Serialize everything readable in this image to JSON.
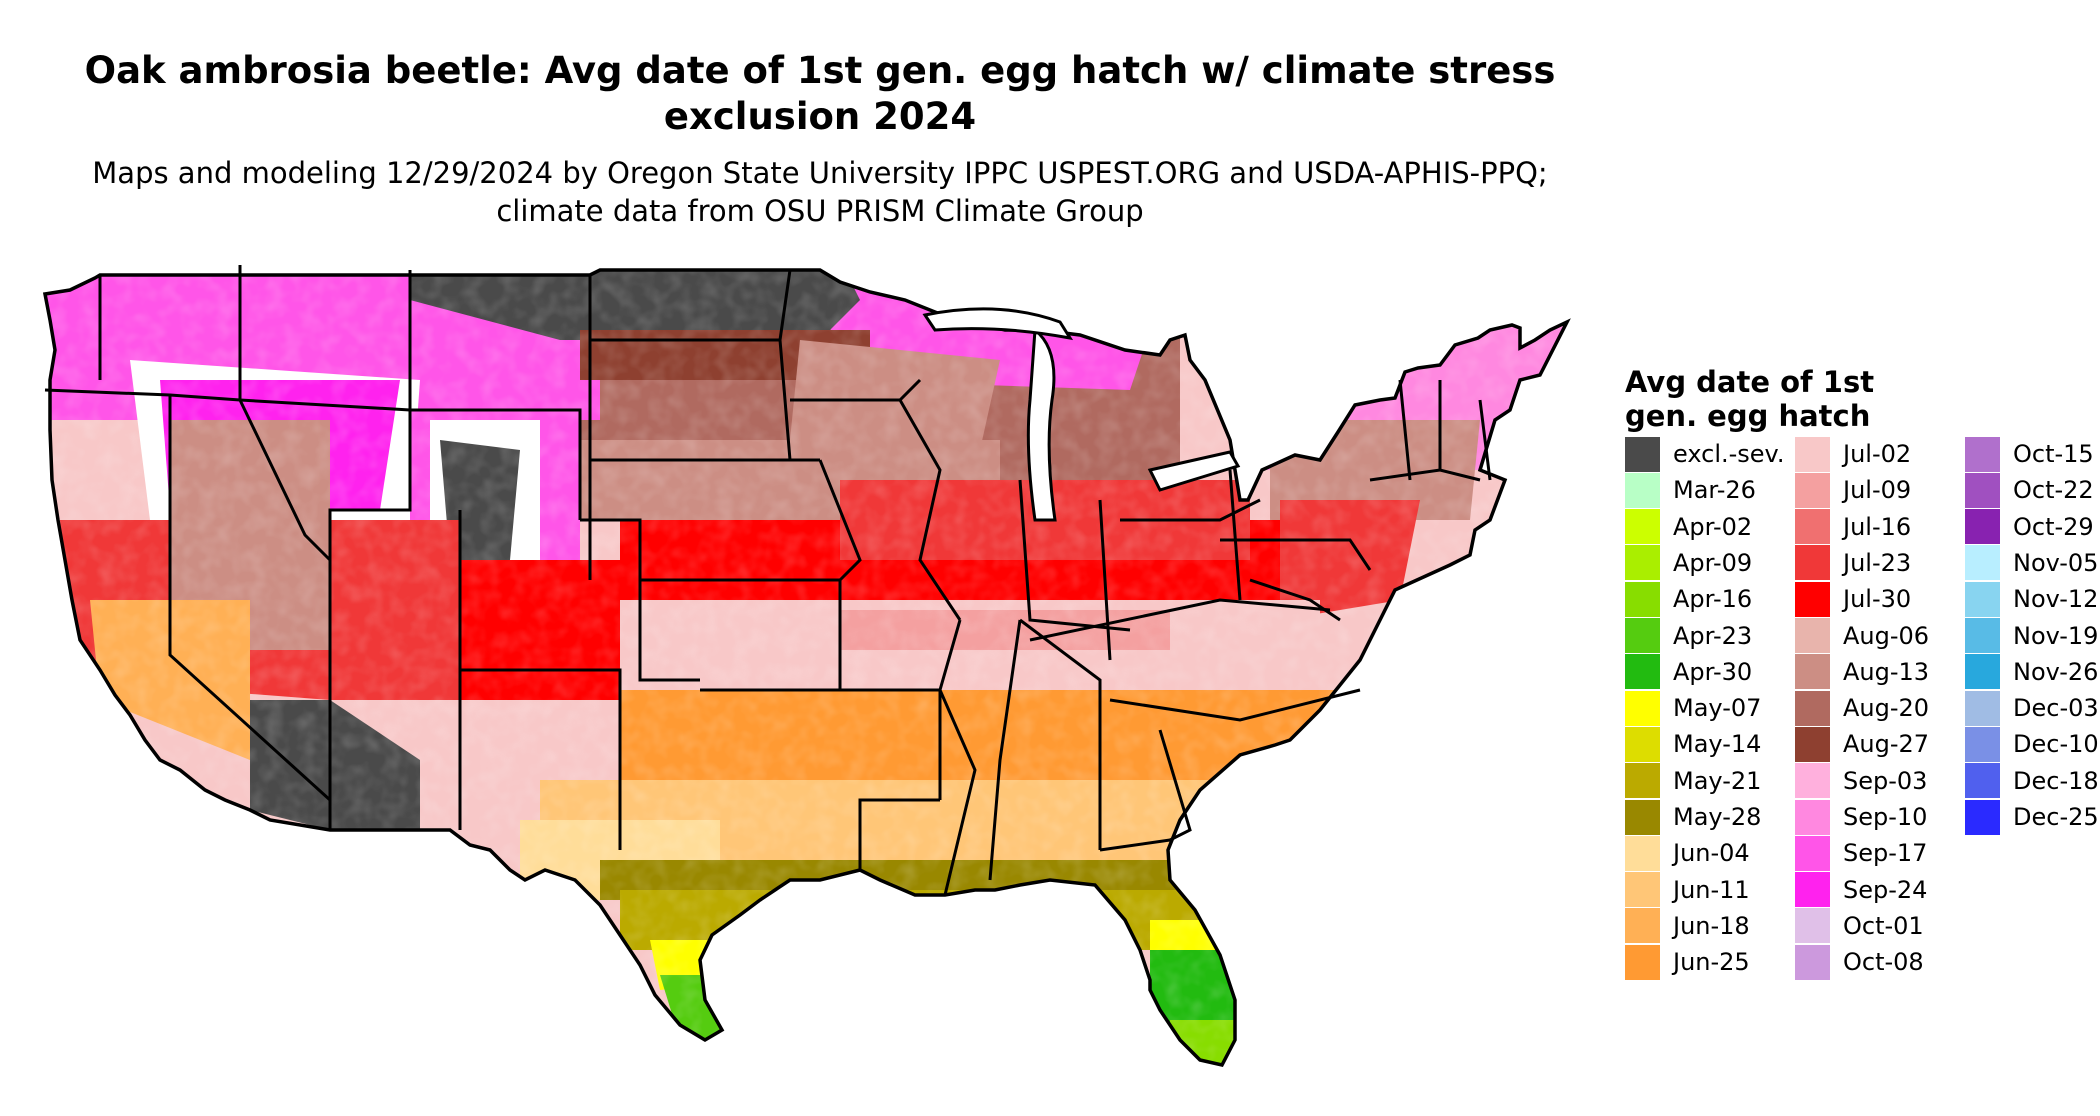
{
  "title": "Oak ambrosia beetle: Avg date of 1st gen. egg hatch w/ climate stress exclusion 2024",
  "subtitle": "Maps and modeling 12/29/2024 by Oregon State University IPPC USPEST.ORG and USDA-APHIS-PPQ; climate data from OSU PRISM Climate Group",
  "legend": {
    "title": "Avg date of 1st gen. egg hatch",
    "items": [
      {
        "label": "excl.-sev.",
        "color": "#4a4a4a"
      },
      {
        "label": "Mar-26",
        "color": "#b8ffc6"
      },
      {
        "label": "Apr-02",
        "color": "#ccff00"
      },
      {
        "label": "Apr-09",
        "color": "#aaee00"
      },
      {
        "label": "Apr-16",
        "color": "#88dd00"
      },
      {
        "label": "Apr-23",
        "color": "#55cc10"
      },
      {
        "label": "Apr-30",
        "color": "#22bb10"
      },
      {
        "label": "May-07",
        "color": "#ffff00"
      },
      {
        "label": "May-14",
        "color": "#dddd00"
      },
      {
        "label": "May-21",
        "color": "#bbaa00"
      },
      {
        "label": "May-28",
        "color": "#998800"
      },
      {
        "label": "Jun-04",
        "color": "#ffdd99"
      },
      {
        "label": "Jun-11",
        "color": "#ffc677"
      },
      {
        "label": "Jun-18",
        "color": "#ffb055"
      },
      {
        "label": "Jun-25",
        "color": "#ff9a33"
      },
      {
        "label": "Jul-02",
        "color": "#f8c8c8"
      },
      {
        "label": "Jul-09",
        "color": "#f4a0a0"
      },
      {
        "label": "Jul-16",
        "color": "#f07070"
      },
      {
        "label": "Jul-23",
        "color": "#f03838"
      },
      {
        "label": "Jul-30",
        "color": "#ff0000"
      },
      {
        "label": "Aug-06",
        "color": "#e8b4ac"
      },
      {
        "label": "Aug-13",
        "color": "#cc8e84"
      },
      {
        "label": "Aug-20",
        "color": "#b06a60"
      },
      {
        "label": "Aug-27",
        "color": "#8e4030"
      },
      {
        "label": "Sep-03",
        "color": "#ffb0dd"
      },
      {
        "label": "Sep-10",
        "color": "#ff88e0"
      },
      {
        "label": "Sep-17",
        "color": "#ff55e8"
      },
      {
        "label": "Sep-24",
        "color": "#ff22ee"
      },
      {
        "label": "Oct-01",
        "color": "#e0c0e8"
      },
      {
        "label": "Oct-08",
        "color": "#cc99dd"
      },
      {
        "label": "Oct-15",
        "color": "#b070cc"
      },
      {
        "label": "Oct-22",
        "color": "#a050c0"
      },
      {
        "label": "Oct-29",
        "color": "#8822b0"
      },
      {
        "label": "Nov-05",
        "color": "#b8eeff"
      },
      {
        "label": "Nov-12",
        "color": "#88d4f0"
      },
      {
        "label": "Nov-19",
        "color": "#58bbe6"
      },
      {
        "label": "Nov-26",
        "color": "#28a8dd"
      },
      {
        "label": "Dec-03",
        "color": "#a0bce4"
      },
      {
        "label": "Dec-10",
        "color": "#7a90e6"
      },
      {
        "label": "Dec-18",
        "color": "#5060ee"
      },
      {
        "label": "Dec-25",
        "color": "#2a2aff"
      }
    ]
  }
}
